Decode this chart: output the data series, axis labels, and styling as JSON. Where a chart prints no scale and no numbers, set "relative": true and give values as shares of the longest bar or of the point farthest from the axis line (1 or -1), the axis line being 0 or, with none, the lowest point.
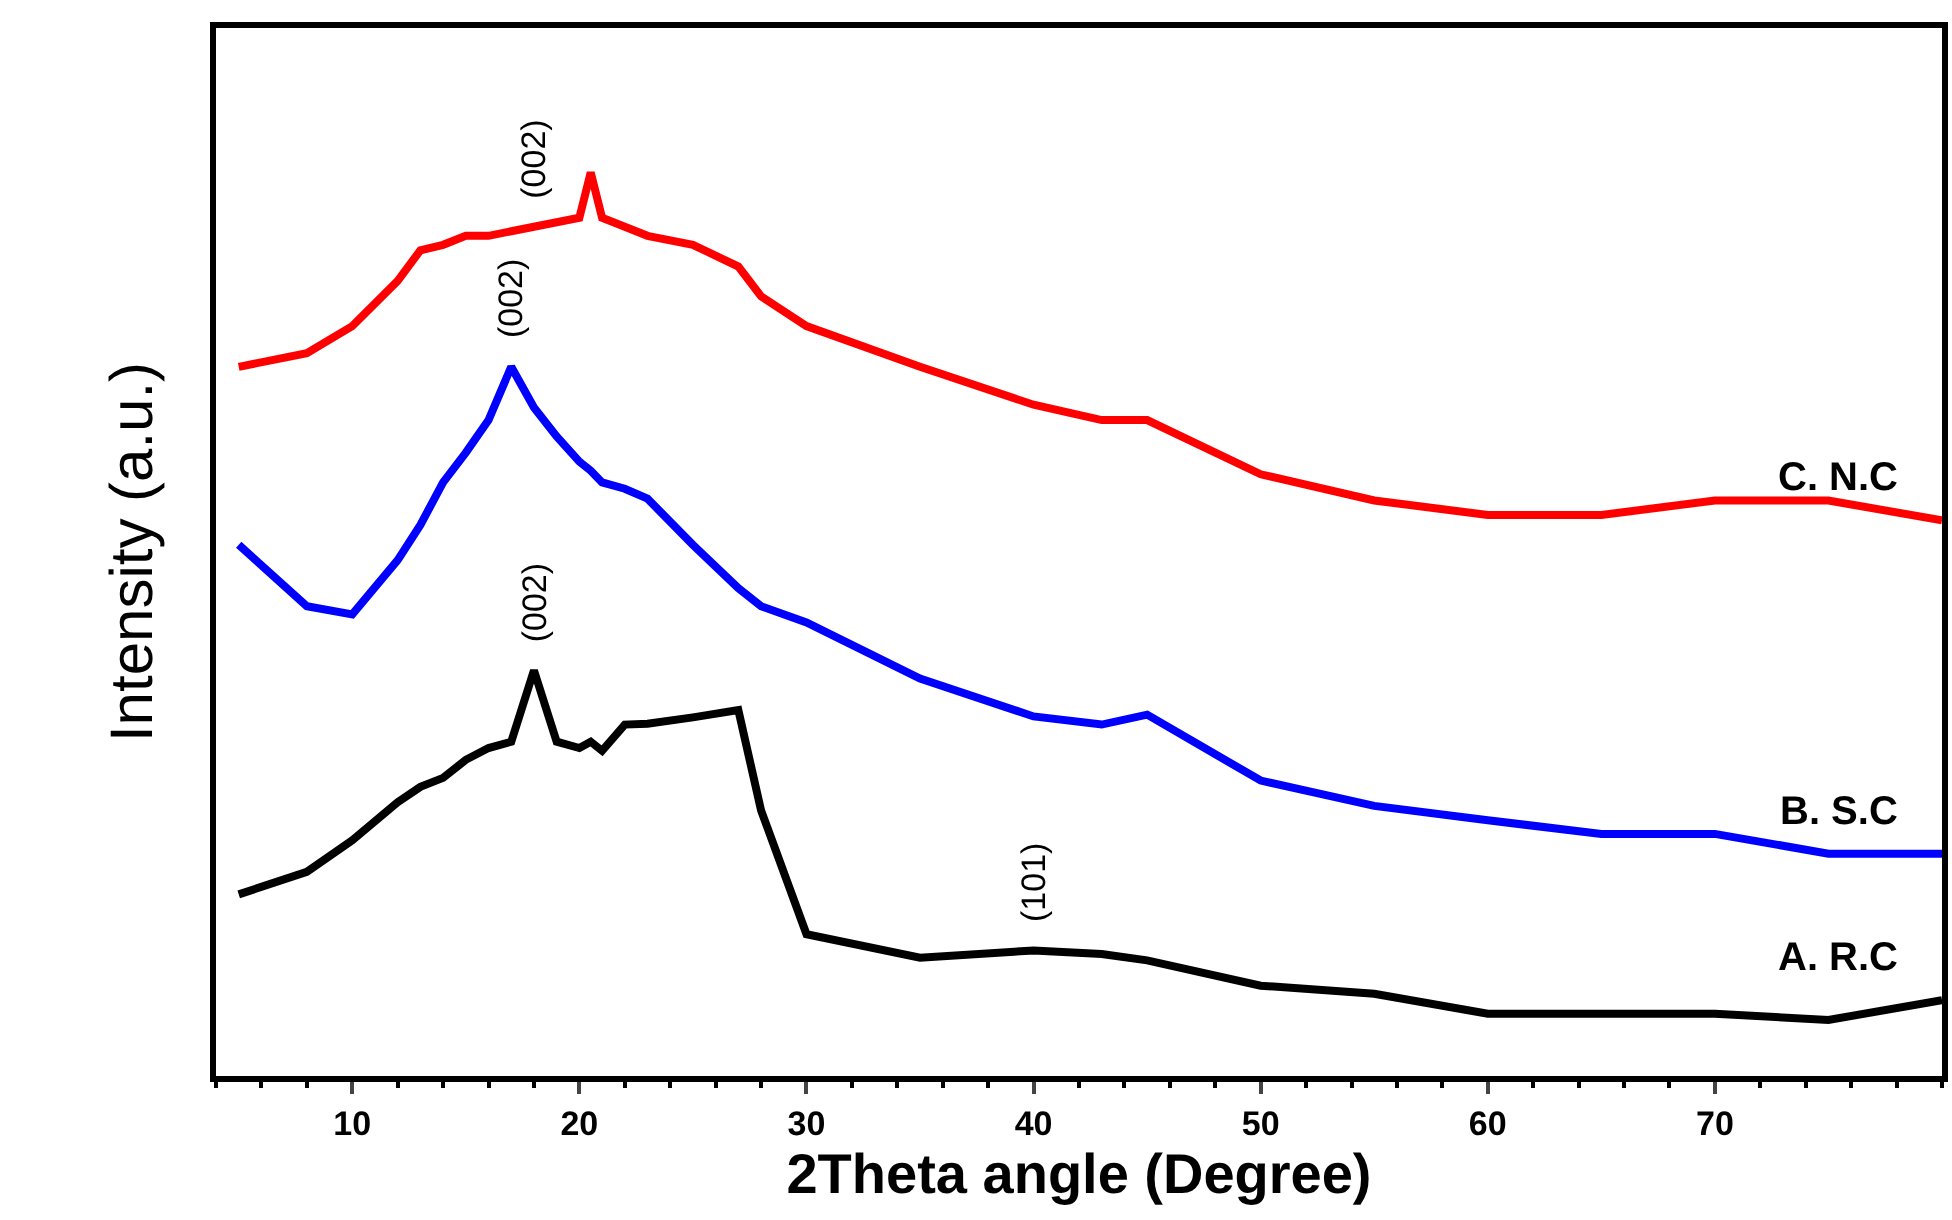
{
  "chart_data": {
    "type": "line",
    "xlabel": "2Theta angle (Degree)",
    "ylabel": "Intensity (a.u.)",
    "relative": true,
    "xlim": [
      4,
      80
    ],
    "xticks": [
      10,
      20,
      30,
      40,
      50,
      60,
      70
    ],
    "legend": false,
    "marker": "none",
    "line_style": "solid",
    "x": [
      5,
      8,
      10,
      12,
      13,
      14,
      15,
      16,
      17,
      18,
      19,
      20,
      20.5,
      21,
      22,
      23,
      25,
      27,
      28,
      30,
      35,
      40,
      43,
      45,
      50,
      55,
      60,
      65,
      70,
      75,
      80
    ],
    "series": [
      {
        "name": "C. N.C",
        "color": "#ff0000",
        "values": [
          0.785,
          0.8,
          0.83,
          0.88,
          0.914,
          0.92,
          0.93,
          0.93,
          0.935,
          0.94,
          0.945,
          0.95,
          1.0,
          0.95,
          0.94,
          0.93,
          0.92,
          0.896,
          0.863,
          0.83,
          0.785,
          0.743,
          0.726,
          0.726,
          0.666,
          0.637,
          0.621,
          0.621,
          0.637,
          0.637,
          0.615
        ]
      },
      {
        "name": "B. S.C",
        "color": "#0000ff",
        "values": [
          0.588,
          0.52,
          0.511,
          0.571,
          0.61,
          0.657,
          0.69,
          0.726,
          0.785,
          0.74,
          0.708,
          0.68,
          0.67,
          0.657,
          0.65,
          0.639,
          0.588,
          0.54,
          0.52,
          0.502,
          0.44,
          0.398,
          0.389,
          0.4,
          0.327,
          0.299,
          0.283,
          0.268,
          0.268,
          0.246,
          0.246
        ]
      },
      {
        "name": "A. R.C",
        "color": "#000000",
        "values": [
          0.201,
          0.226,
          0.261,
          0.303,
          0.32,
          0.33,
          0.35,
          0.363,
          0.37,
          0.449,
          0.37,
          0.363,
          0.37,
          0.36,
          0.389,
          0.39,
          0.397,
          0.405,
          0.294,
          0.157,
          0.131,
          0.139,
          0.135,
          0.128,
          0.1,
          0.091,
          0.069,
          0.069,
          0.069,
          0.062,
          0.084
        ]
      }
    ],
    "annotations": [
      {
        "text": "(002)",
        "x": 18,
        "y": 0.94
      },
      {
        "text": "(002)",
        "x": 17,
        "y": 0.785
      },
      {
        "text": "(002)",
        "x": 18,
        "y": 0.449
      },
      {
        "text": "(101)",
        "x": 40,
        "y": 0.139
      }
    ]
  }
}
